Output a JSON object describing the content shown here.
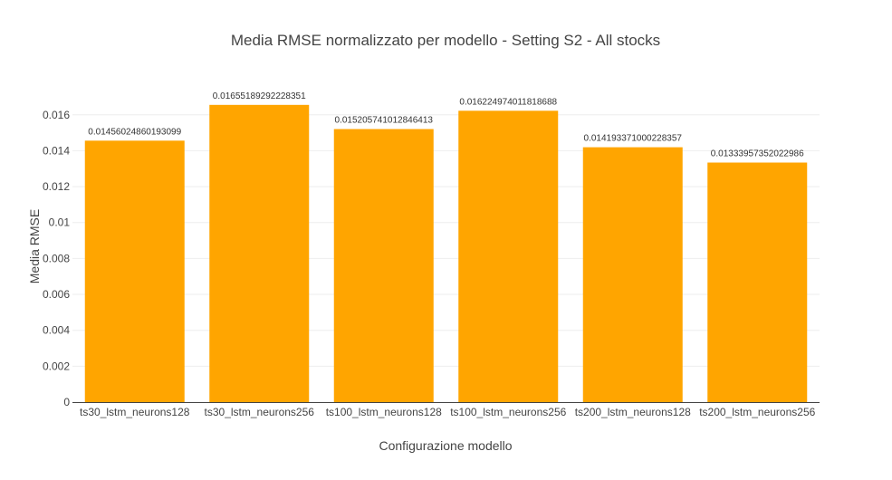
{
  "chart_data": {
    "type": "bar",
    "title": "Media RMSE normalizzato per modello - Setting S2 - All stocks",
    "xlabel": "Configurazione modello",
    "ylabel": "Media RMSE",
    "categories": [
      "ts30_lstm_neurons128",
      "ts30_lstm_neurons256",
      "ts100_lstm_neurons128",
      "ts100_lstm_neurons256",
      "ts200_lstm_neurons128",
      "ts200_lstm_neurons256"
    ],
    "values": [
      0.01456024860193099,
      0.01655189292228351,
      0.015205741012846413,
      0.016224974011818688,
      0.014193371000228357,
      0.013339573520229868
    ],
    "value_labels": [
      "0.01456024860193099",
      "0.01655189292228351",
      "0.015205741012846413",
      "0.016224974011818688",
      "0.014193371000228357",
      "0.01333957352022986"
    ],
    "yticks": [
      0,
      0.002,
      0.004,
      0.006,
      0.008,
      0.01,
      0.012,
      0.014,
      0.016
    ],
    "ytick_labels": [
      "0",
      "0.002",
      "0.004",
      "0.006",
      "0.008",
      "0.01",
      "0.012",
      "0.014",
      "0.016"
    ],
    "ylim": [
      0,
      0.0174
    ],
    "grid": true,
    "colors": {
      "bar": "#FFA500",
      "grid": "#eeeeee",
      "text": "#444444"
    }
  }
}
